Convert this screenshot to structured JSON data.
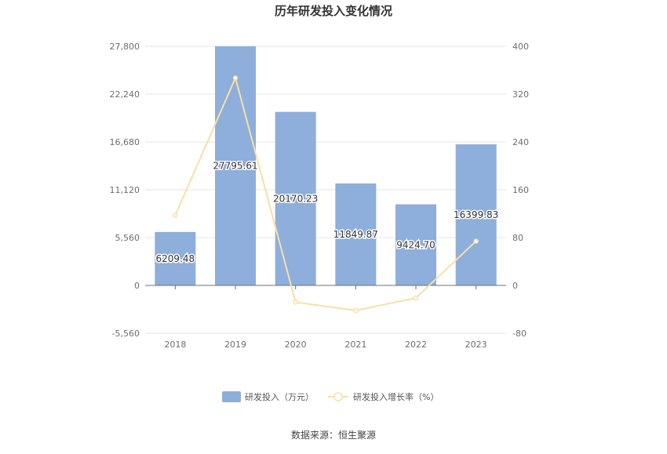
{
  "chart_data": {
    "type": "bar",
    "title": "历年研发投入变化情况",
    "categories": [
      "2018",
      "2019",
      "2020",
      "2021",
      "2022",
      "2023"
    ],
    "series": [
      {
        "name": "研发投入（万元）",
        "type": "bar",
        "axis": "left",
        "color": "#8eaedb",
        "values": [
          6209.48,
          27795.61,
          20170.23,
          11849.87,
          9424.7,
          16399.83
        ],
        "labels": [
          "6209.48",
          "27795.61",
          "20170.23",
          "11849.87",
          "9424.70",
          "16399.83"
        ]
      },
      {
        "name": "研发投入增长率（%）",
        "type": "line",
        "axis": "right",
        "color": "#f9dfa6",
        "values": [
          117,
          347,
          -28,
          -42,
          -21,
          74
        ]
      }
    ],
    "y_left": {
      "min": -5560,
      "max": 27800,
      "ticks": [
        -5560,
        0,
        5560,
        11120,
        16680,
        22240,
        27800
      ],
      "tick_labels": [
        "-5,560",
        "0",
        "5,560",
        "11,120",
        "16,680",
        "22,240",
        "27,800"
      ]
    },
    "y_right": {
      "min": -80,
      "max": 400,
      "ticks": [
        -80,
        0,
        80,
        160,
        240,
        320,
        400
      ],
      "tick_labels": [
        "-80",
        "0",
        "80",
        "160",
        "240",
        "320",
        "400"
      ]
    },
    "grid": true,
    "legend_position": "bottom",
    "source": "数据来源：恒生聚源"
  }
}
